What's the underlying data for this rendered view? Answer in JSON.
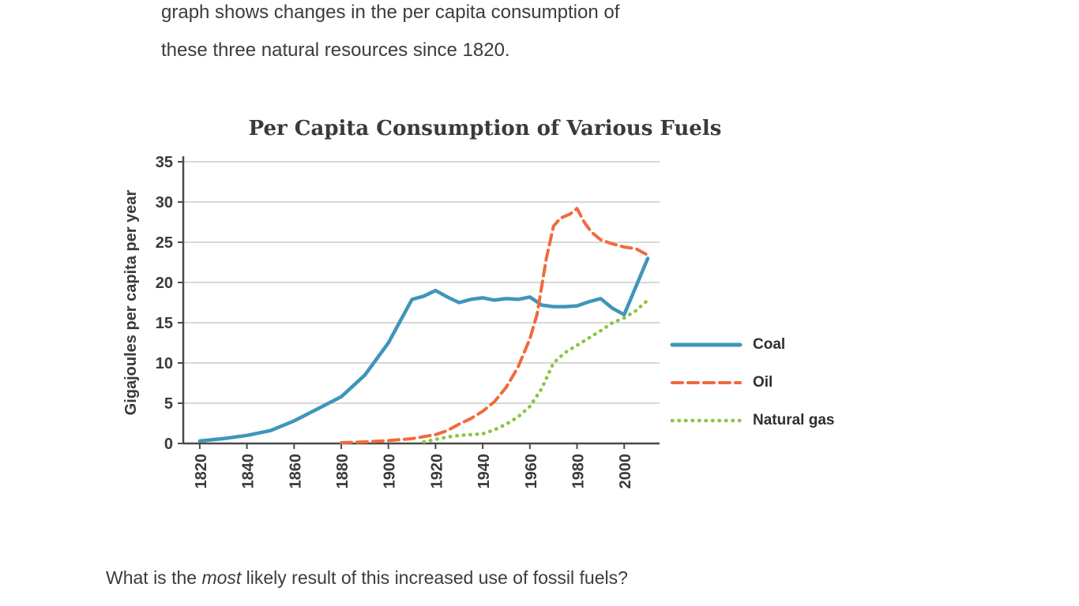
{
  "intro": {
    "line1": "graph shows changes in the per capita consumption of",
    "line2": "these three natural resources since 1820."
  },
  "question": {
    "prefix": "What is the ",
    "emphasis": "most",
    "suffix": " likely result of this increased use of fossil fuels?"
  },
  "chart_data": {
    "type": "line",
    "title": "Per Capita Consumption of Various Fuels",
    "xlabel": "",
    "ylabel": "Gigajoules per capita per year",
    "xlim": [
      1813,
      2015
    ],
    "ylim": [
      0,
      35
    ],
    "yticks": [
      0,
      5,
      10,
      15,
      20,
      25,
      30,
      35
    ],
    "xticks": [
      1820,
      1840,
      1860,
      1880,
      1900,
      1920,
      1940,
      1960,
      1980,
      2000
    ],
    "grid": true,
    "legend_position": "right",
    "colors": {
      "grid": "#cbcbcb",
      "axis": "#4a4a4a"
    },
    "series": [
      {
        "name": "Coal",
        "color": "#3f96ba",
        "style": "solid",
        "width": 4.5,
        "x": [
          1820,
          1830,
          1840,
          1850,
          1860,
          1870,
          1880,
          1890,
          1900,
          1910,
          1915,
          1920,
          1925,
          1930,
          1935,
          1940,
          1945,
          1950,
          1955,
          1960,
          1965,
          1970,
          1975,
          1980,
          1985,
          1990,
          1995,
          2000,
          2005,
          2010
        ],
        "y": [
          0.3,
          0.6,
          1.0,
          1.6,
          2.8,
          4.3,
          5.8,
          8.5,
          12.5,
          17.9,
          18.3,
          19.0,
          18.2,
          17.5,
          17.9,
          18.1,
          17.8,
          18.0,
          17.9,
          18.2,
          17.2,
          17.0,
          17.0,
          17.1,
          17.6,
          18.0,
          16.8,
          16.0,
          19.5,
          23.0
        ]
      },
      {
        "name": "Oil",
        "color": "#f16a3c",
        "style": "dashed",
        "width": 4,
        "x": [
          1880,
          1890,
          1900,
          1910,
          1920,
          1925,
          1930,
          1935,
          1940,
          1945,
          1950,
          1955,
          1960,
          1963,
          1967,
          1970,
          1973,
          1977,
          1980,
          1983,
          1986,
          1990,
          1995,
          2000,
          2005,
          2010
        ],
        "y": [
          0.1,
          0.2,
          0.35,
          0.6,
          1.1,
          1.6,
          2.4,
          3.1,
          4.0,
          5.2,
          7.0,
          9.5,
          13.0,
          16.0,
          23.0,
          27.0,
          28.0,
          28.5,
          29.2,
          27.5,
          26.3,
          25.3,
          24.8,
          24.4,
          24.2,
          23.4
        ]
      },
      {
        "name": "Natural gas",
        "color": "#8bc53f",
        "style": "dotted",
        "width": 4.5,
        "x": [
          1915,
          1920,
          1925,
          1930,
          1935,
          1940,
          1945,
          1950,
          1955,
          1960,
          1965,
          1970,
          1975,
          1980,
          1985,
          1990,
          1995,
          2000,
          2005,
          2010
        ],
        "y": [
          0.2,
          0.5,
          0.8,
          1.0,
          1.1,
          1.2,
          1.7,
          2.4,
          3.3,
          4.6,
          6.8,
          10.0,
          11.3,
          12.2,
          13.1,
          14.0,
          15.0,
          15.6,
          16.5,
          17.8
        ]
      }
    ]
  }
}
